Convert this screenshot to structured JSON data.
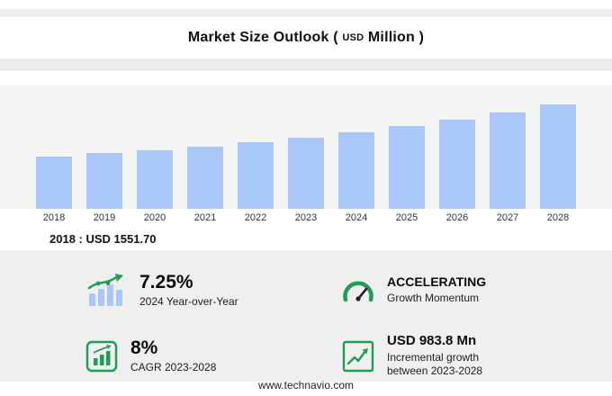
{
  "header": {
    "title": "Market Size Outlook",
    "open_paren": "(",
    "currency": "USD",
    "unit": "Million",
    "close_paren": ")"
  },
  "chart_data": {
    "type": "bar",
    "title": "Market Size Outlook (USD Million)",
    "categories": [
      "2018",
      "2019",
      "2020",
      "2021",
      "2022",
      "2023",
      "2024",
      "2025",
      "2026",
      "2027",
      "2028"
    ],
    "values": [
      1551.7,
      1640,
      1735,
      1840,
      1960,
      2096,
      2248,
      2432,
      2631,
      2846,
      3080
    ],
    "bar_color": "#a9c7f8",
    "ylim": [
      0,
      3200
    ],
    "grid": false,
    "legend": "none",
    "xlabel": "",
    "ylabel": ""
  },
  "base_year": {
    "label": "2018 : USD 1551.70"
  },
  "stats": {
    "yoy": {
      "value": "7.25%",
      "label": "2024 Year-over-Year"
    },
    "momentum": {
      "value": "ACCELERATING",
      "label": "Growth Momentum"
    },
    "cagr": {
      "value": "8%",
      "label": "CAGR 2023-2028"
    },
    "incremental": {
      "value": "USD 983.8 Mn",
      "label_line1": "Incremental growth",
      "label_line2": "between 2023-2028"
    }
  },
  "footer": {
    "url": "www.technavio.com"
  },
  "colors": {
    "bar": "#a9c7f8",
    "accent_green": "#1f9d55",
    "strip_gray": "#ededed",
    "panel_gray": "#efefef"
  }
}
